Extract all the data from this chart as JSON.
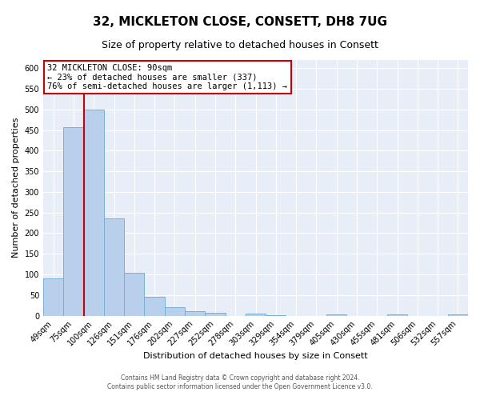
{
  "title": "32, MICKLETON CLOSE, CONSETT, DH8 7UG",
  "subtitle": "Size of property relative to detached houses in Consett",
  "xlabel": "Distribution of detached houses by size in Consett",
  "ylabel": "Number of detached properties",
  "bin_labels": [
    "49sqm",
    "75sqm",
    "100sqm",
    "126sqm",
    "151sqm",
    "176sqm",
    "202sqm",
    "227sqm",
    "252sqm",
    "278sqm",
    "303sqm",
    "329sqm",
    "354sqm",
    "379sqm",
    "405sqm",
    "430sqm",
    "455sqm",
    "481sqm",
    "506sqm",
    "532sqm",
    "557sqm"
  ],
  "bar_heights": [
    90,
    457,
    500,
    236,
    104,
    46,
    20,
    11,
    7,
    0,
    5,
    1,
    0,
    0,
    3,
    0,
    0,
    3,
    0,
    0,
    3
  ],
  "bar_color": "#b8d0eb",
  "bar_edge_color": "#7aafd4",
  "red_line_color": "#cc0000",
  "red_line_x": 1.5,
  "annotation_line1": "32 MICKLETON CLOSE: 90sqm",
  "annotation_line2": "← 23% of detached houses are smaller (337)",
  "annotation_line3": "76% of semi-detached houses are larger (1,113) →",
  "annotation_box_color": "#ffffff",
  "annotation_box_edge": "#cc0000",
  "ylim": [
    0,
    620
  ],
  "yticks": [
    0,
    50,
    100,
    150,
    200,
    250,
    300,
    350,
    400,
    450,
    500,
    550,
    600
  ],
  "footer1": "Contains HM Land Registry data © Crown copyright and database right 2024.",
  "footer2": "Contains public sector information licensed under the Open Government Licence v3.0.",
  "fig_background": "#ffffff",
  "plot_background": "#e8eef7",
  "grid_color": "#ffffff",
  "title_fontsize": 11,
  "subtitle_fontsize": 9,
  "axis_label_fontsize": 8,
  "tick_fontsize": 7,
  "annotation_fontsize": 7.5,
  "footer_fontsize": 5.5
}
